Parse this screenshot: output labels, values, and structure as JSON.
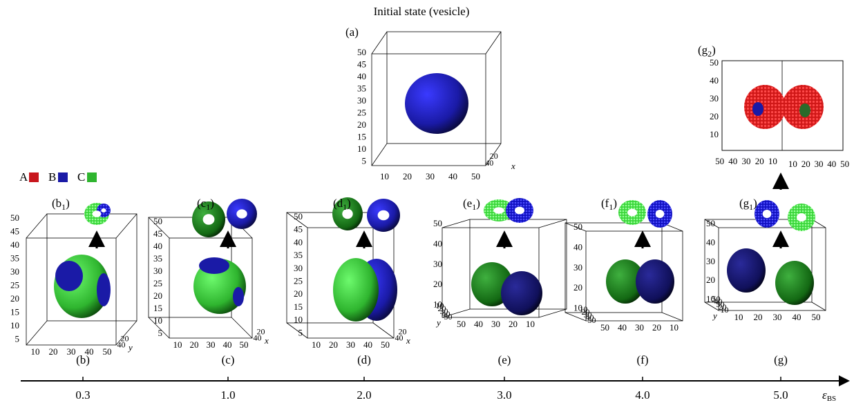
{
  "title": "Initial state (vesicle)",
  "legend": [
    {
      "label": "A",
      "color": "#c8161d"
    },
    {
      "label": "B",
      "color": "#1a1aa6"
    },
    {
      "label": "C",
      "color": "#2fb52f"
    }
  ],
  "top_panel": {
    "label": "(a)",
    "z_ticks": [
      "5",
      "10",
      "15",
      "20",
      "25",
      "30",
      "35",
      "40",
      "45",
      "50"
    ],
    "x_ticks": [
      "10",
      "20",
      "30",
      "40",
      "50"
    ],
    "depth_ticks": [
      "20",
      "40"
    ],
    "depth_label": "x"
  },
  "g2": {
    "label": "(g",
    "sub": "2",
    "close": ")",
    "z_ticks": [
      "10",
      "20",
      "30",
      "40",
      "50"
    ],
    "left_ticks": [
      "50",
      "40",
      "30",
      "20",
      "10"
    ],
    "right_ticks": [
      "10",
      "20",
      "30",
      "40",
      "50"
    ]
  },
  "axis": {
    "label": "ε",
    "sub": "BS"
  },
  "panels": [
    {
      "label": "(b)",
      "value": "0.3",
      "inset": {
        "label": "(b",
        "sub": "1",
        "close": ")"
      },
      "z_ticks": [
        "5",
        "10",
        "15",
        "20",
        "25",
        "30",
        "35",
        "40",
        "45",
        "50"
      ],
      "x_ticks": [
        "10",
        "20",
        "30",
        "40",
        "50"
      ],
      "depth_ticks": [
        "20",
        "40"
      ],
      "depth_label": "y"
    },
    {
      "label": "(c)",
      "value": "1.0",
      "inset": {
        "label": "(c",
        "sub": "1",
        "close": ")"
      },
      "z_ticks": [
        "5",
        "10",
        "15",
        "20",
        "25",
        "30",
        "35",
        "40",
        "45",
        "50"
      ],
      "x_ticks": [
        "10",
        "20",
        "30",
        "40",
        "50"
      ],
      "depth_ticks": [
        "20",
        "40"
      ],
      "depth_label": "x"
    },
    {
      "label": "(d)",
      "value": "2.0",
      "inset": {
        "label": "(d",
        "sub": "1",
        "close": ")"
      },
      "z_ticks": [
        "5",
        "10",
        "15",
        "20",
        "25",
        "30",
        "35",
        "40",
        "45",
        "50"
      ],
      "x_ticks": [
        "10",
        "20",
        "30",
        "40",
        "50"
      ],
      "depth_ticks": [
        "20",
        "40"
      ],
      "depth_label": "x"
    },
    {
      "label": "(e)",
      "value": "3.0",
      "inset": {
        "label": "(e",
        "sub": "1",
        "close": ")"
      },
      "z_ticks": [
        "10",
        "20",
        "30",
        "40",
        "50"
      ],
      "x_ticks": [
        "50",
        "40",
        "30",
        "20",
        "10"
      ],
      "depth_ticks": [
        "10",
        "20",
        "30",
        "40",
        "50"
      ],
      "depth_label": "y"
    },
    {
      "label": "(f)",
      "value": "4.0",
      "inset": {
        "label": "(f",
        "sub": "1",
        "close": ")"
      },
      "z_ticks": [
        "10",
        "20",
        "30",
        "40",
        "50"
      ],
      "x_ticks": [
        "50",
        "40",
        "30",
        "20",
        "10"
      ],
      "depth_ticks": [
        "10",
        "20",
        "30",
        "40",
        "50"
      ]
    },
    {
      "label": "(g)",
      "value": "5.0",
      "inset": {
        "label": "(g",
        "sub": "1",
        "close": ")"
      },
      "z_ticks": [
        "10",
        "20",
        "30",
        "40",
        "50"
      ],
      "x_ticks": [
        "10",
        "20",
        "30",
        "40",
        "50"
      ],
      "depth_ticks": [
        "50",
        "40",
        "30",
        "20",
        "10"
      ],
      "depth_label": "y"
    }
  ]
}
